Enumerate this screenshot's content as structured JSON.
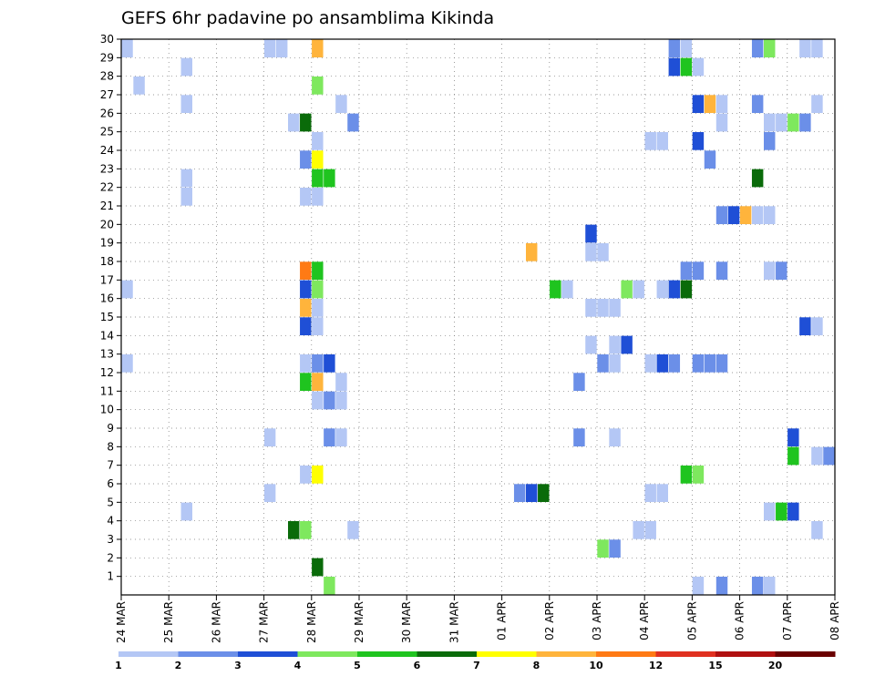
{
  "chart_data": {
    "type": "heatmap",
    "title": "GEFS 6hr padavine po ansamblima Kikinda",
    "xlabel": "",
    "ylabel": "",
    "x_tick_labels": [
      "24 MAR",
      "25 MAR",
      "26 MAR",
      "27 MAR",
      "28 MAR",
      "29 MAR",
      "30 MAR",
      "31 MAR",
      "01 APR",
      "02 APR",
      "03 APR",
      "04 APR",
      "05 APR",
      "06 APR",
      "07 APR",
      "08 APR"
    ],
    "y_tick_labels": [
      "1",
      "2",
      "3",
      "4",
      "5",
      "6",
      "7",
      "8",
      "9",
      "10",
      "11",
      "12",
      "13",
      "14",
      "15",
      "16",
      "17",
      "18",
      "19",
      "20",
      "21",
      "22",
      "23",
      "24",
      "25",
      "26",
      "27",
      "28",
      "29",
      "30"
    ],
    "x_unit": "6-hour step from 24 MAR 00Z",
    "x_range": [
      0,
      60
    ],
    "y_range": [
      0,
      30
    ],
    "grid": true,
    "colorbar": {
      "labels": [
        "1",
        "2",
        "3",
        "4",
        "5",
        "6",
        "7",
        "8",
        "10",
        "12",
        "15",
        "20"
      ],
      "colors": [
        "#b4c7f5",
        "#6b8fe8",
        "#1f4fd6",
        "#7ee85e",
        "#1fc41f",
        "#0a6b0a",
        "#ffff00",
        "#ffb43c",
        "#ff7a14",
        "#e03020",
        "#b01010",
        "#6a0000"
      ]
    },
    "cells": [
      {
        "x": 0,
        "y": 30,
        "v": 1
      },
      {
        "x": 12,
        "y": 30,
        "v": 1
      },
      {
        "x": 13,
        "y": 30,
        "v": 1
      },
      {
        "x": 16,
        "y": 30,
        "v": 8
      },
      {
        "x": 46,
        "y": 30,
        "v": 2
      },
      {
        "x": 47,
        "y": 30,
        "v": 1
      },
      {
        "x": 53,
        "y": 30,
        "v": 2
      },
      {
        "x": 54,
        "y": 30,
        "v": 4
      },
      {
        "x": 57,
        "y": 30,
        "v": 1
      },
      {
        "x": 58,
        "y": 30,
        "v": 1
      },
      {
        "x": 5,
        "y": 29,
        "v": 1
      },
      {
        "x": 46,
        "y": 29,
        "v": 3
      },
      {
        "x": 47,
        "y": 29,
        "v": 5
      },
      {
        "x": 48,
        "y": 29,
        "v": 1
      },
      {
        "x": 1,
        "y": 28,
        "v": 1
      },
      {
        "x": 16,
        "y": 28,
        "v": 4
      },
      {
        "x": 5,
        "y": 27,
        "v": 1
      },
      {
        "x": 18,
        "y": 27,
        "v": 1
      },
      {
        "x": 48,
        "y": 27,
        "v": 3
      },
      {
        "x": 49,
        "y": 27,
        "v": 8
      },
      {
        "x": 50,
        "y": 27,
        "v": 1
      },
      {
        "x": 53,
        "y": 27,
        "v": 2
      },
      {
        "x": 58,
        "y": 27,
        "v": 1
      },
      {
        "x": 14,
        "y": 26,
        "v": 1
      },
      {
        "x": 15,
        "y": 26,
        "v": 6
      },
      {
        "x": 19,
        "y": 26,
        "v": 2
      },
      {
        "x": 50,
        "y": 26,
        "v": 1
      },
      {
        "x": 54,
        "y": 26,
        "v": 1
      },
      {
        "x": 55,
        "y": 26,
        "v": 1
      },
      {
        "x": 56,
        "y": 26,
        "v": 4
      },
      {
        "x": 57,
        "y": 26,
        "v": 2
      },
      {
        "x": 16,
        "y": 25,
        "v": 1
      },
      {
        "x": 44,
        "y": 25,
        "v": 1
      },
      {
        "x": 45,
        "y": 25,
        "v": 1
      },
      {
        "x": 48,
        "y": 25,
        "v": 3
      },
      {
        "x": 54,
        "y": 25,
        "v": 2
      },
      {
        "x": 15,
        "y": 24,
        "v": 2
      },
      {
        "x": 16,
        "y": 24,
        "v": 7
      },
      {
        "x": 49,
        "y": 24,
        "v": 2
      },
      {
        "x": 5,
        "y": 23,
        "v": 1
      },
      {
        "x": 16,
        "y": 23,
        "v": 5
      },
      {
        "x": 17,
        "y": 23,
        "v": 5
      },
      {
        "x": 53,
        "y": 23,
        "v": 6
      },
      {
        "x": 5,
        "y": 22,
        "v": 1
      },
      {
        "x": 15,
        "y": 22,
        "v": 1
      },
      {
        "x": 16,
        "y": 22,
        "v": 1
      },
      {
        "x": 50,
        "y": 21,
        "v": 2
      },
      {
        "x": 51,
        "y": 21,
        "v": 3
      },
      {
        "x": 52,
        "y": 21,
        "v": 8
      },
      {
        "x": 53,
        "y": 21,
        "v": 1
      },
      {
        "x": 54,
        "y": 21,
        "v": 1
      },
      {
        "x": 39,
        "y": 20,
        "v": 3
      },
      {
        "x": 34,
        "y": 19,
        "v": 8
      },
      {
        "x": 39,
        "y": 19,
        "v": 1
      },
      {
        "x": 40,
        "y": 19,
        "v": 1
      },
      {
        "x": 15,
        "y": 18,
        "v": 10
      },
      {
        "x": 16,
        "y": 18,
        "v": 5
      },
      {
        "x": 47,
        "y": 18,
        "v": 2
      },
      {
        "x": 48,
        "y": 18,
        "v": 2
      },
      {
        "x": 50,
        "y": 18,
        "v": 2
      },
      {
        "x": 54,
        "y": 18,
        "v": 1
      },
      {
        "x": 55,
        "y": 18,
        "v": 2
      },
      {
        "x": 0,
        "y": 17,
        "v": 1
      },
      {
        "x": 15,
        "y": 17,
        "v": 3
      },
      {
        "x": 16,
        "y": 17,
        "v": 4
      },
      {
        "x": 36,
        "y": 17,
        "v": 5
      },
      {
        "x": 37,
        "y": 17,
        "v": 1
      },
      {
        "x": 42,
        "y": 17,
        "v": 4
      },
      {
        "x": 43,
        "y": 17,
        "v": 1
      },
      {
        "x": 45,
        "y": 17,
        "v": 1
      },
      {
        "x": 46,
        "y": 17,
        "v": 3
      },
      {
        "x": 47,
        "y": 17,
        "v": 6
      },
      {
        "x": 15,
        "y": 16,
        "v": 8
      },
      {
        "x": 16,
        "y": 16,
        "v": 1
      },
      {
        "x": 39,
        "y": 16,
        "v": 1
      },
      {
        "x": 40,
        "y": 16,
        "v": 1
      },
      {
        "x": 41,
        "y": 16,
        "v": 1
      },
      {
        "x": 15,
        "y": 15,
        "v": 3
      },
      {
        "x": 16,
        "y": 15,
        "v": 1
      },
      {
        "x": 57,
        "y": 15,
        "v": 3
      },
      {
        "x": 58,
        "y": 15,
        "v": 1
      },
      {
        "x": 39,
        "y": 14,
        "v": 1
      },
      {
        "x": 41,
        "y": 14,
        "v": 1
      },
      {
        "x": 42,
        "y": 14,
        "v": 3
      },
      {
        "x": 0,
        "y": 13,
        "v": 1
      },
      {
        "x": 15,
        "y": 13,
        "v": 1
      },
      {
        "x": 16,
        "y": 13,
        "v": 2
      },
      {
        "x": 17,
        "y": 13,
        "v": 3
      },
      {
        "x": 40,
        "y": 13,
        "v": 2
      },
      {
        "x": 41,
        "y": 13,
        "v": 1
      },
      {
        "x": 44,
        "y": 13,
        "v": 1
      },
      {
        "x": 45,
        "y": 13,
        "v": 3
      },
      {
        "x": 46,
        "y": 13,
        "v": 2
      },
      {
        "x": 48,
        "y": 13,
        "v": 2
      },
      {
        "x": 49,
        "y": 13,
        "v": 2
      },
      {
        "x": 50,
        "y": 13,
        "v": 2
      },
      {
        "x": 15,
        "y": 12,
        "v": 5
      },
      {
        "x": 16,
        "y": 12,
        "v": 8
      },
      {
        "x": 18,
        "y": 12,
        "v": 1
      },
      {
        "x": 38,
        "y": 12,
        "v": 2
      },
      {
        "x": 16,
        "y": 11,
        "v": 1
      },
      {
        "x": 17,
        "y": 11,
        "v": 2
      },
      {
        "x": 18,
        "y": 11,
        "v": 1
      },
      {
        "x": 12,
        "y": 9,
        "v": 1
      },
      {
        "x": 17,
        "y": 9,
        "v": 2
      },
      {
        "x": 18,
        "y": 9,
        "v": 1
      },
      {
        "x": 38,
        "y": 9,
        "v": 2
      },
      {
        "x": 41,
        "y": 9,
        "v": 1
      },
      {
        "x": 56,
        "y": 9,
        "v": 3
      },
      {
        "x": 56,
        "y": 8,
        "v": 5
      },
      {
        "x": 58,
        "y": 8,
        "v": 1
      },
      {
        "x": 59,
        "y": 8,
        "v": 2
      },
      {
        "x": 15,
        "y": 7,
        "v": 1
      },
      {
        "x": 16,
        "y": 7,
        "v": 7
      },
      {
        "x": 47,
        "y": 7,
        "v": 5
      },
      {
        "x": 48,
        "y": 7,
        "v": 4
      },
      {
        "x": 12,
        "y": 6,
        "v": 1
      },
      {
        "x": 33,
        "y": 6,
        "v": 2
      },
      {
        "x": 34,
        "y": 6,
        "v": 3
      },
      {
        "x": 35,
        "y": 6,
        "v": 6
      },
      {
        "x": 44,
        "y": 6,
        "v": 1
      },
      {
        "x": 45,
        "y": 6,
        "v": 1
      },
      {
        "x": 5,
        "y": 5,
        "v": 1
      },
      {
        "x": 54,
        "y": 5,
        "v": 1
      },
      {
        "x": 55,
        "y": 5,
        "v": 5
      },
      {
        "x": 56,
        "y": 5,
        "v": 3
      },
      {
        "x": 14,
        "y": 4,
        "v": 6
      },
      {
        "x": 15,
        "y": 4,
        "v": 4
      },
      {
        "x": 19,
        "y": 4,
        "v": 1
      },
      {
        "x": 43,
        "y": 4,
        "v": 1
      },
      {
        "x": 44,
        "y": 4,
        "v": 1
      },
      {
        "x": 58,
        "y": 4,
        "v": 1
      },
      {
        "x": 40,
        "y": 3,
        "v": 4
      },
      {
        "x": 41,
        "y": 3,
        "v": 2
      },
      {
        "x": 16,
        "y": 2,
        "v": 6
      },
      {
        "x": 17,
        "y": 1,
        "v": 4
      },
      {
        "x": 48,
        "y": 1,
        "v": 1
      },
      {
        "x": 50,
        "y": 1,
        "v": 2
      },
      {
        "x": 53,
        "y": 1,
        "v": 2
      },
      {
        "x": 54,
        "y": 1,
        "v": 1
      }
    ]
  }
}
